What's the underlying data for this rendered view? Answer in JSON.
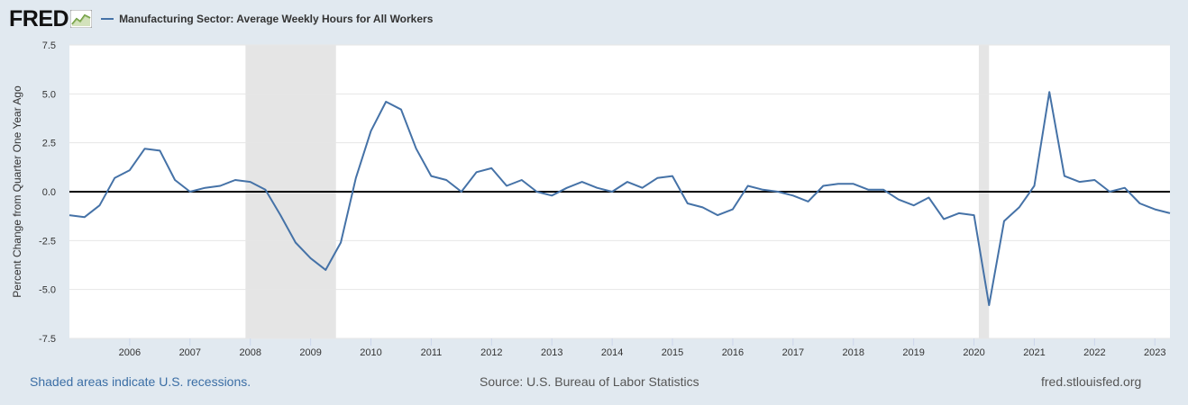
{
  "header": {
    "logo_text": "FRED",
    "logo_icon": "chart-badge-icon",
    "legend_label": "Manufacturing Sector: Average Weekly Hours for All Workers"
  },
  "footer": {
    "recessions_note": "Shaded areas indicate U.S. recessions.",
    "source": "Source: U.S. Bureau of Labor Statistics",
    "site": "fred.stlouisfed.org"
  },
  "colors": {
    "line": "#4572a7",
    "recession": "#e5e5e5",
    "background": "#e1e9f0",
    "plot": "#ffffff",
    "zero_line": "#000000"
  },
  "chart_data": {
    "type": "line",
    "title": "",
    "xlabel": "",
    "ylabel": "Percent Change from Quarter One Year Ago",
    "xlim": [
      2005.0,
      2023.25
    ],
    "ylim": [
      -7.5,
      7.5
    ],
    "y_ticks": [
      7.5,
      5.0,
      2.5,
      0.0,
      -2.5,
      -5.0,
      -7.5
    ],
    "y_tick_labels": [
      "7.5",
      "5.0",
      "2.5",
      "0.0",
      "-2.5",
      "-5.0",
      "-7.5"
    ],
    "x_ticks": [
      2006,
      2007,
      2008,
      2009,
      2010,
      2011,
      2012,
      2013,
      2014,
      2015,
      2016,
      2017,
      2018,
      2019,
      2020,
      2021,
      2022,
      2023
    ],
    "x_tick_labels": [
      "2006",
      "2007",
      "2008",
      "2009",
      "2010",
      "2011",
      "2012",
      "2013",
      "2014",
      "2015",
      "2016",
      "2017",
      "2018",
      "2019",
      "2020",
      "2021",
      "2022",
      "2023"
    ],
    "grid": true,
    "legend": "top-left",
    "reference_line": 0,
    "recessions": [
      [
        2007.92,
        2009.42
      ],
      [
        2020.08,
        2020.25
      ]
    ],
    "series": [
      {
        "name": "Manufacturing Sector: Average Weekly Hours for All Workers",
        "x": [
          2005.0,
          2005.25,
          2005.5,
          2005.75,
          2006.0,
          2006.25,
          2006.5,
          2006.75,
          2007.0,
          2007.25,
          2007.5,
          2007.75,
          2008.0,
          2008.25,
          2008.5,
          2008.75,
          2009.0,
          2009.25,
          2009.5,
          2009.75,
          2010.0,
          2010.25,
          2010.5,
          2010.75,
          2011.0,
          2011.25,
          2011.5,
          2011.75,
          2012.0,
          2012.25,
          2012.5,
          2012.75,
          2013.0,
          2013.25,
          2013.5,
          2013.75,
          2014.0,
          2014.25,
          2014.5,
          2014.75,
          2015.0,
          2015.25,
          2015.5,
          2015.75,
          2016.0,
          2016.25,
          2016.5,
          2016.75,
          2017.0,
          2017.25,
          2017.5,
          2017.75,
          2018.0,
          2018.25,
          2018.5,
          2018.75,
          2019.0,
          2019.25,
          2019.5,
          2019.75,
          2020.0,
          2020.25,
          2020.5,
          2020.75,
          2021.0,
          2021.25,
          2021.5,
          2021.75,
          2022.0,
          2022.25,
          2022.5,
          2022.75,
          2023.0,
          2023.25
        ],
        "values": [
          -1.2,
          -1.3,
          -0.7,
          0.7,
          1.1,
          2.2,
          2.1,
          0.6,
          0.0,
          0.2,
          0.3,
          0.6,
          0.5,
          0.1,
          -1.2,
          -2.6,
          -3.4,
          -4.0,
          -2.6,
          0.7,
          3.1,
          4.6,
          4.2,
          2.2,
          0.8,
          0.6,
          0.0,
          1.0,
          1.2,
          0.3,
          0.6,
          0.0,
          -0.2,
          0.2,
          0.5,
          0.2,
          0.0,
          0.5,
          0.2,
          0.7,
          0.8,
          -0.6,
          -0.8,
          -1.2,
          -0.9,
          0.3,
          0.1,
          0.0,
          -0.2,
          -0.5,
          0.3,
          0.4,
          0.4,
          0.1,
          0.1,
          -0.4,
          -0.7,
          -0.3,
          -1.4,
          -1.1,
          -1.2,
          -5.8,
          -1.5,
          -0.8,
          0.3,
          5.1,
          0.8,
          0.5,
          0.6,
          0.0,
          0.2,
          -0.6,
          -0.9,
          -1.1
        ]
      }
    ]
  }
}
